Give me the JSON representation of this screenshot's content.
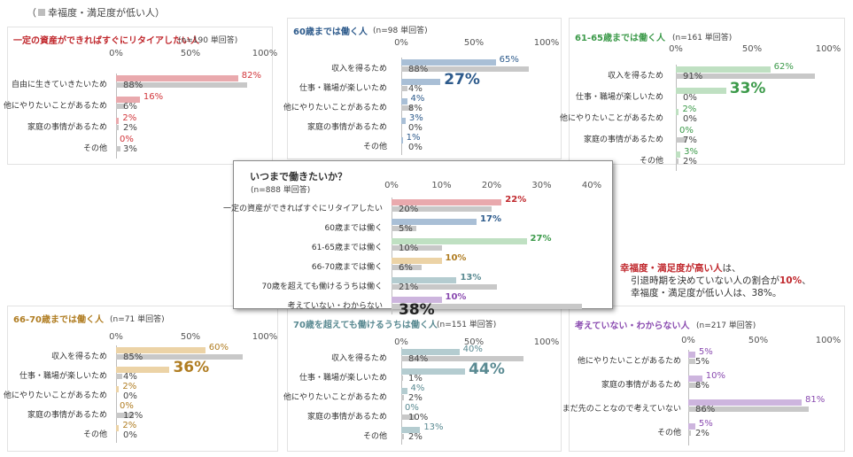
{
  "legend": {
    "prefix": "（",
    "label": "幸福度・満足度が低い人",
    "suffix": "）"
  },
  "colors": {
    "low": "#c8c8c8",
    "text_low": "#444444"
  },
  "note": {
    "line1_red": "幸福度・満足度が高い人",
    "line1_rest": "は、",
    "line2_a": "引退時期を決めていない人の割合が",
    "line2_red": "10%",
    "line2_b": "、",
    "line3": "幸福度・満足度が低い人は、38%。"
  },
  "chart_data": [
    {
      "id": "retire-asset",
      "type": "bar",
      "orientation": "horizontal",
      "title": "一定の資産ができればすぐにリタイアしたい人",
      "subtitle": "(n=190 単回答)",
      "title_color": "#c0282d",
      "color_high": "#e9a9ad",
      "text_high": "#d2363b",
      "ticks": [
        "0%",
        "50%",
        "100%"
      ],
      "xlim": [
        0,
        100
      ],
      "categories": [
        "自由に生きていきたいため",
        "他にやりたいことがあるため",
        "家庭の事情があるため",
        "その他"
      ],
      "series": [
        {
          "key": "high",
          "values": [
            82,
            16,
            2,
            0
          ],
          "labels": [
            "82%",
            "16%",
            "2%",
            "0%"
          ]
        },
        {
          "key": "low",
          "values": [
            88,
            6,
            2,
            3
          ],
          "labels": [
            "88%",
            "6%",
            "2%",
            "3%"
          ]
        }
      ],
      "big_index": -1
    },
    {
      "id": "until-60",
      "type": "bar",
      "orientation": "horizontal",
      "title": "60歳までは働く人",
      "subtitle": "(n=98 単回答)",
      "title_color": "#2e5b8c",
      "color_high": "#a9bfd6",
      "text_high": "#2e5b8c",
      "ticks": [
        "0%",
        "50%",
        "100%"
      ],
      "xlim": [
        0,
        100
      ],
      "categories": [
        "収入を得るため",
        "仕事・職場が楽しいため",
        "他にやりたいことがあるため",
        "家庭の事情があるため",
        "その他"
      ],
      "series": [
        {
          "key": "high",
          "values": [
            65,
            27,
            4,
            3,
            1
          ],
          "labels": [
            "65%",
            "27%",
            "4%",
            "3%",
            "1%"
          ]
        },
        {
          "key": "low",
          "values": [
            88,
            4,
            8,
            0,
            0
          ],
          "labels": [
            "88%",
            "4%",
            "8%",
            "0%",
            "0%"
          ]
        }
      ],
      "big_index": 1
    },
    {
      "id": "until-61-65",
      "type": "bar",
      "orientation": "horizontal",
      "title": "61-65歳までは働く人",
      "subtitle": "(n=161 単回答)",
      "title_color": "#3c9a4a",
      "color_high": "#bfe0c2",
      "text_high": "#3c9a4a",
      "ticks": [
        "0%",
        "50%",
        "100%"
      ],
      "xlim": [
        0,
        100
      ],
      "categories": [
        "収入を得るため",
        "仕事・職場が楽しいため",
        "他にやりたいことがあるため",
        "家庭の事情があるため",
        "その他"
      ],
      "series": [
        {
          "key": "high",
          "values": [
            62,
            33,
            2,
            0,
            3
          ],
          "labels": [
            "62%",
            "33%",
            "2%",
            "0%",
            "3%"
          ]
        },
        {
          "key": "low",
          "values": [
            91,
            0,
            0,
            7,
            2
          ],
          "labels": [
            "91%",
            "0%",
            "0%",
            "7%",
            "2%"
          ]
        }
      ],
      "big_index": 1
    },
    {
      "id": "summary",
      "type": "bar",
      "orientation": "horizontal",
      "title": "いつまで働きたいか？",
      "subtitle": "(n=888 単回答)",
      "title_color": "#333333",
      "ticks": [
        "0%",
        "10%",
        "20%",
        "30%",
        "40%"
      ],
      "xlim": [
        0,
        40
      ],
      "categories": [
        "一定の資産ができればすぐにリタイアしたい",
        "60歳までは働く",
        "61-65歳までは働く",
        "66-70歳までは働く",
        "70歳を超えても働けるうちは働く",
        "考えていない・わからない"
      ],
      "high_colors": [
        "#e9a9ad",
        "#a9bfd6",
        "#bfe0c2",
        "#ecd3a6",
        "#b4ccd0",
        "#cdb5de"
      ],
      "high_text_colors": [
        "#c0282d",
        "#2e5b8c",
        "#3c9a4a",
        "#b07d22",
        "#5a8a92",
        "#8a4bb0"
      ],
      "series": [
        {
          "key": "high",
          "values": [
            22,
            17,
            27,
            10,
            13,
            10
          ],
          "labels": [
            "22%",
            "17%",
            "27%",
            "10%",
            "13%",
            "10%"
          ]
        },
        {
          "key": "low",
          "values": [
            20,
            5,
            10,
            6,
            21,
            38
          ],
          "labels": [
            "20%",
            "5%",
            "10%",
            "6%",
            "21%",
            "38%"
          ]
        }
      ]
    },
    {
      "id": "until-66-70",
      "type": "bar",
      "orientation": "horizontal",
      "title": "66-70歳までは働く人",
      "subtitle": "(n=71 単回答)",
      "title_color": "#b07d22",
      "color_high": "#ecd3a6",
      "text_high": "#b07d22",
      "ticks": [
        "0%",
        "50%",
        "100%"
      ],
      "xlim": [
        0,
        100
      ],
      "categories": [
        "収入を得るため",
        "仕事・職場が楽しいため",
        "他にやりたいことがあるため",
        "家庭の事情があるため",
        "その他"
      ],
      "series": [
        {
          "key": "high",
          "values": [
            60,
            36,
            2,
            0,
            2
          ],
          "labels": [
            "60%",
            "36%",
            "2%",
            "0%",
            "2%"
          ]
        },
        {
          "key": "low",
          "values": [
            85,
            4,
            0,
            12,
            0
          ],
          "labels": [
            "85%",
            "4%",
            "0%",
            "12%",
            "0%"
          ]
        }
      ],
      "big_index": 1
    },
    {
      "id": "over-70",
      "type": "bar",
      "orientation": "horizontal",
      "title": "70歳を超えても働けるうちは働く人",
      "subtitle": "(n=151 単回答)",
      "title_color": "#5a8a92",
      "color_high": "#b4ccd0",
      "text_high": "#5a8a92",
      "ticks": [
        "0%",
        "50%",
        "100%"
      ],
      "xlim": [
        0,
        100
      ],
      "categories": [
        "収入を得るため",
        "仕事・職場が楽しいため",
        "他にやりたいことがあるため",
        "家庭の事情があるため",
        "その他"
      ],
      "series": [
        {
          "key": "high",
          "values": [
            40,
            44,
            4,
            0,
            13
          ],
          "labels": [
            "40%",
            "44%",
            "4%",
            "0%",
            "13%"
          ]
        },
        {
          "key": "low",
          "values": [
            84,
            1,
            2,
            10,
            2
          ],
          "labels": [
            "84%",
            "1%",
            "2%",
            "10%",
            "2%"
          ]
        }
      ],
      "big_index": 1
    },
    {
      "id": "undecided",
      "type": "bar",
      "orientation": "horizontal",
      "title": "考えていない・わからない人",
      "subtitle": "(n=217 単回答)",
      "title_color": "#8a4bb0",
      "color_high": "#cdb5de",
      "text_high": "#8a4bb0",
      "ticks": [
        "0%",
        "50%",
        "100%"
      ],
      "xlim": [
        0,
        100
      ],
      "categories": [
        "他にやりたいことがあるため",
        "家庭の事情があるため",
        "まだ先のことなので考えていない",
        "その他"
      ],
      "series": [
        {
          "key": "high",
          "values": [
            5,
            10,
            81,
            5
          ],
          "labels": [
            "5%",
            "10%",
            "81%",
            "5%"
          ]
        },
        {
          "key": "low",
          "values": [
            5,
            8,
            86,
            2
          ],
          "labels": [
            "5%",
            "8%",
            "86%",
            "2%"
          ]
        }
      ],
      "big_index": -1
    }
  ]
}
